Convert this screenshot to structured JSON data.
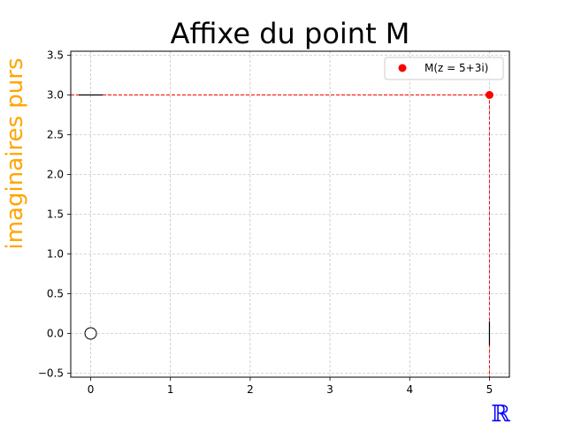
{
  "chart_data": {
    "type": "scatter",
    "title": "Affixe du point M",
    "xlabel": "ℝ",
    "ylabel": "imaginaires purs",
    "xlabel_color": "#0000ff",
    "ylabel_color": "#ffa500",
    "xlim": [
      -0.25,
      5.25
    ],
    "ylim": [
      -0.55,
      3.55
    ],
    "xticks": [
      0,
      1,
      2,
      3,
      4,
      5
    ],
    "yticks": [
      -0.5,
      0.0,
      0.5,
      1.0,
      1.5,
      2.0,
      2.5,
      3.0,
      3.5
    ],
    "ytick_labels": [
      "−0.5",
      "0.0",
      "0.5",
      "1.0",
      "1.5",
      "2.0",
      "2.5",
      "3.0",
      "3.5"
    ],
    "grid": true,
    "legend_position": "top-right",
    "series": [
      {
        "name": "M(z = 5+3i)",
        "x": [
          5
        ],
        "y": [
          3
        ],
        "color": "#ff0000"
      }
    ],
    "origin_marker": {
      "x": 0,
      "y": 0
    },
    "guides": {
      "x": 5,
      "y": 3,
      "color": "#ff0000"
    },
    "axis_ticks": {
      "x": 5,
      "y": 3,
      "color": "#000000"
    }
  }
}
